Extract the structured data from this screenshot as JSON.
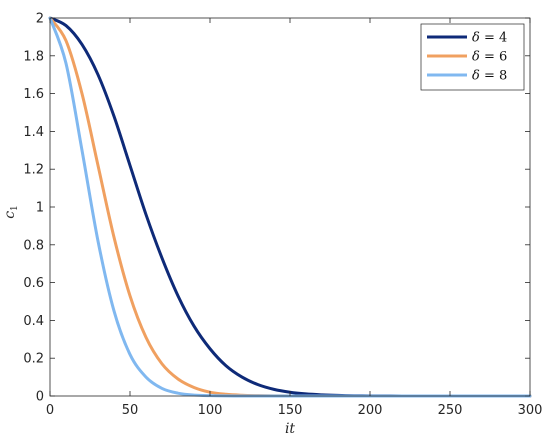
{
  "chart_data": {
    "type": "line",
    "title": "",
    "xlabel": "it",
    "ylabel": "c1",
    "ylabel_main": "c",
    "ylabel_sub": "1",
    "xlim": [
      0,
      300
    ],
    "ylim": [
      0,
      2
    ],
    "xticks": [
      0,
      50,
      100,
      150,
      200,
      250,
      300
    ],
    "yticks": [
      0,
      0.2,
      0.4,
      0.6,
      0.8,
      1,
      1.2,
      1.4,
      1.6,
      1.8,
      2
    ],
    "grid": false,
    "legend_position": "top-right",
    "x": [
      0,
      10,
      20,
      30,
      40,
      50,
      60,
      70,
      80,
      90,
      100,
      110,
      120,
      130,
      140,
      150,
      160,
      170,
      180,
      190,
      200,
      210,
      220,
      240,
      260,
      280,
      300
    ],
    "series": [
      {
        "name": "δ = 4",
        "name_symbol": "δ",
        "name_rest": " = 4",
        "color": "#0e2a78",
        "values": [
          2.0,
          1.96,
          1.86,
          1.7,
          1.48,
          1.22,
          0.96,
          0.73,
          0.53,
          0.37,
          0.25,
          0.16,
          0.1,
          0.06,
          0.035,
          0.02,
          0.011,
          0.006,
          0.003,
          0.0015,
          0.0008,
          0.0004,
          0.0002,
          0.0,
          0.0,
          0.0,
          0.0
        ]
      },
      {
        "name": "δ = 6",
        "name_symbol": "δ",
        "name_rest": " = 6",
        "color": "#f0a060",
        "values": [
          2.0,
          1.88,
          1.6,
          1.22,
          0.84,
          0.53,
          0.31,
          0.17,
          0.09,
          0.045,
          0.02,
          0.009,
          0.004,
          0.0017,
          0.0007,
          0.0003,
          0.0001,
          0.0,
          0.0,
          0.0,
          0.0,
          0.0,
          0.0,
          0.0,
          0.0,
          0.0,
          0.0
        ]
      },
      {
        "name": "δ = 8",
        "name_symbol": "δ",
        "name_rest": " = 8",
        "color": "#80b8f0",
        "values": [
          2.0,
          1.76,
          1.3,
          0.82,
          0.45,
          0.22,
          0.1,
          0.04,
          0.015,
          0.005,
          0.0017,
          0.0005,
          0.0001,
          0.0,
          0.0,
          0.0,
          0.0,
          0.0,
          0.0,
          0.0,
          0.0,
          0.0,
          0.0,
          0.0,
          0.0,
          0.0,
          0.0
        ]
      }
    ]
  }
}
